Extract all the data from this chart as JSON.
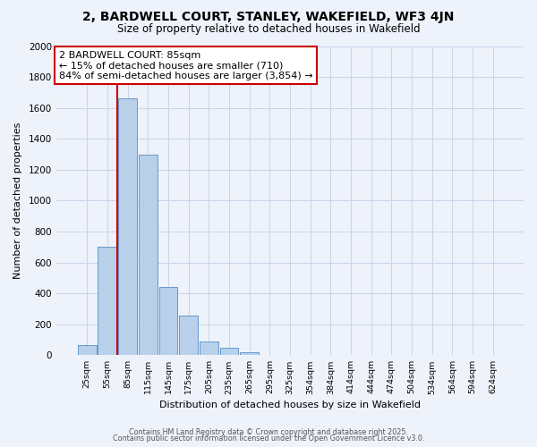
{
  "title": "2, BARDWELL COURT, STANLEY, WAKEFIELD, WF3 4JN",
  "subtitle": "Size of property relative to detached houses in Wakefield",
  "xlabel": "Distribution of detached houses by size in Wakefield",
  "ylabel": "Number of detached properties",
  "bin_labels": [
    "25sqm",
    "55sqm",
    "85sqm",
    "115sqm",
    "145sqm",
    "175sqm",
    "205sqm",
    "235sqm",
    "265sqm",
    "295sqm",
    "325sqm",
    "354sqm",
    "384sqm",
    "414sqm",
    "444sqm",
    "474sqm",
    "504sqm",
    "534sqm",
    "564sqm",
    "594sqm",
    "624sqm"
  ],
  "bar_values": [
    65,
    700,
    1660,
    1300,
    440,
    255,
    88,
    50,
    22,
    0,
    0,
    0,
    0,
    0,
    0,
    0,
    0,
    0,
    0,
    0,
    0
  ],
  "bar_color": "#b8d0ea",
  "bar_edge_color": "#6699cc",
  "property_bin_index": 2,
  "property_line_label": "2 BARDWELL COURT: 85sqm",
  "annotation_line1": "← 15% of detached houses are smaller (710)",
  "annotation_line2": "84% of semi-detached houses are larger (3,854) →",
  "annotation_box_color": "#ffffff",
  "annotation_box_edge_color": "#cc0000",
  "vline_color": "#cc0000",
  "ylim": [
    0,
    2000
  ],
  "yticks": [
    0,
    200,
    400,
    600,
    800,
    1000,
    1200,
    1400,
    1600,
    1800,
    2000
  ],
  "footer1": "Contains HM Land Registry data © Crown copyright and database right 2025.",
  "footer2": "Contains public sector information licensed under the Open Government Licence v3.0.",
  "bg_color": "#eef2fb",
  "grid_color": "#c8d4e8",
  "title_fontsize": 10,
  "subtitle_fontsize": 8.5,
  "xlabel_fontsize": 8,
  "ylabel_fontsize": 8
}
